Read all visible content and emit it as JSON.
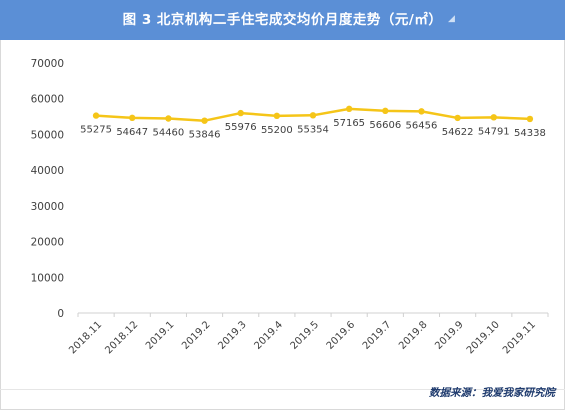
{
  "header": {
    "title": "图 3   北京机构二手住宅成交均价月度走势（元/㎡）"
  },
  "footer": {
    "source": "数据来源：我爱我家研究院"
  },
  "colors": {
    "banner": "#5b8fd6",
    "line": "#f5c518",
    "text": "#404040"
  },
  "chart_data": {
    "type": "line",
    "title": "图 3   北京机构二手住宅成交均价月度走势（元/㎡）",
    "categories": [
      "2018.11",
      "2018.12",
      "2019.1",
      "2019.2",
      "2019.3",
      "2019.4",
      "2019.5",
      "2019.6",
      "2019.7",
      "2019.8",
      "2019.9",
      "2019.10",
      "2019.11"
    ],
    "series": [
      {
        "values": [
          55275,
          54647,
          54460,
          53846,
          55976,
          55200,
          55354,
          57165,
          56606,
          56456,
          54622,
          54791,
          54338
        ]
      }
    ],
    "ylim": [
      0,
      70000
    ],
    "yticks": [
      0,
      10000,
      20000,
      30000,
      40000,
      50000,
      60000,
      70000
    ],
    "grid": false,
    "legend": "none",
    "data_labels": true
  }
}
